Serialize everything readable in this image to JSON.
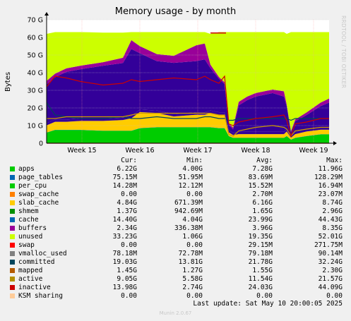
{
  "chart_data": {
    "type": "area",
    "title": "Memory usage - by month",
    "ylabel": "Bytes",
    "side_label": "RRDTOOL / TOBI OETIKER",
    "ylim": [
      0,
      70
    ],
    "yticks": [
      0,
      10,
      20,
      30,
      40,
      50,
      60,
      70
    ],
    "ytick_labels": [
      "0",
      "10 G",
      "20 G",
      "30 G",
      "40 G",
      "50 G",
      "60 G",
      "70 G"
    ],
    "xticks": [
      {
        "label": "Week 15",
        "pos": 0.125
      },
      {
        "label": "Week 16",
        "pos": 0.33
      },
      {
        "label": "Week 17",
        "pos": 0.535
      },
      {
        "label": "Week 18",
        "pos": 0.74
      },
      {
        "label": "Week 19",
        "pos": 0.945
      }
    ],
    "x": [
      0,
      0.03,
      0.07,
      0.12,
      0.2,
      0.27,
      0.3,
      0.33,
      0.39,
      0.45,
      0.53,
      0.56,
      0.58,
      0.61,
      0.63,
      0.645,
      0.66,
      0.68,
      0.71,
      0.74,
      0.8,
      0.84,
      0.85,
      0.865,
      0.88,
      0.92,
      0.97,
      1.0
    ],
    "series": [
      {
        "name": "apps",
        "color": "#00cc00",
        "values": [
          6,
          7.5,
          7.5,
          7.5,
          7,
          7,
          7,
          8.5,
          9,
          9,
          9,
          9,
          9,
          8.5,
          8.5,
          4,
          3,
          3,
          3,
          3,
          3,
          3,
          4,
          2,
          3,
          4,
          5,
          5
        ]
      },
      {
        "name": "page_tables",
        "color": "#0066b3",
        "values": [
          0.1,
          0.1,
          0.1,
          0.1,
          0.1,
          0.1,
          0.1,
          0.1,
          0.1,
          0.1,
          0.1,
          0.1,
          0.1,
          0.1,
          0.1,
          0.1,
          0.1,
          0.1,
          0.1,
          0.1,
          0.1,
          0.1,
          0.1,
          0.1,
          0.1,
          0.1,
          0.1,
          0.1
        ]
      },
      {
        "name": "per_cpu",
        "color": "#ff8000",
        "values": [
          0.05,
          0.05,
          0.05,
          0.05,
          0.05,
          0.05,
          0.05,
          0.05,
          0.05,
          0.05,
          0.05,
          0.05,
          0.05,
          0.05,
          0.05,
          0.05,
          0.05,
          0.05,
          0.05,
          0.05,
          0.05,
          0.05,
          0.05,
          0.05,
          0.05,
          0.05,
          0.05,
          0.05
        ]
      },
      {
        "name": "slab_cache",
        "color": "#ffcc00",
        "values": [
          4,
          4.5,
          4.5,
          5,
          5.5,
          6,
          7,
          9,
          8,
          6,
          7,
          7,
          8,
          7.5,
          7.5,
          2,
          1.5,
          2,
          2,
          2,
          2,
          2,
          2.5,
          1,
          2,
          2.5,
          2.5,
          2.5
        ]
      },
      {
        "name": "shmem",
        "color": "#330099",
        "values": [
          1.2,
          1.3,
          1.3,
          1.3,
          1.3,
          1.3,
          1.3,
          1.4,
          1.4,
          1.4,
          1.4,
          1.4,
          1.4,
          1.4,
          1.4,
          1.2,
          1.2,
          1.3,
          1.3,
          1.3,
          1.3,
          1.3,
          1.3,
          1.2,
          1.3,
          1.3,
          1.4,
          1.4
        ]
      },
      {
        "name": "cache",
        "color": "#330099",
        "values": [
          22,
          24,
          27,
          28,
          30,
          31,
          38,
          32,
          28,
          29,
          29,
          30,
          24,
          19,
          16,
          3,
          2,
          15,
          18,
          20,
          22,
          20,
          13,
          2,
          6,
          8,
          12,
          14
        ]
      },
      {
        "name": "buffers",
        "color": "#990099",
        "values": [
          2,
          2,
          2,
          2,
          2,
          3,
          5,
          4,
          4,
          4,
          9,
          9,
          2,
          1,
          1,
          1,
          1,
          2,
          2,
          2,
          2,
          3,
          1,
          0.5,
          1,
          1.5,
          2,
          2.3
        ]
      },
      {
        "name": "unused",
        "color": "#ccff00",
        "values": [
          26.65,
          23.55,
          20.55,
          19.05,
          16.75,
          14.25,
          4.55,
          7.95,
          12.45,
          13.45,
          7.45,
          6.45,
          17.45,
          25.45,
          28.45,
          51.65,
          54.15,
          39.55,
          36.55,
          34.55,
          32.55,
          33.55,
          40.05,
          56.15,
          49.55,
          45.55,
          39.95,
          37.65
        ]
      }
    ],
    "lines": [
      {
        "name": "committed",
        "color": "#00455c",
        "values": [
          23,
          16,
          15,
          14,
          14,
          15,
          14,
          14,
          15,
          14,
          14,
          15,
          15,
          14,
          14,
          13,
          13,
          14,
          14,
          14,
          14,
          14,
          14,
          13,
          14,
          14,
          14,
          14
        ]
      },
      {
        "name": "active",
        "color": "#cc9900",
        "values": [
          14,
          14,
          15,
          15,
          15,
          15,
          16,
          17,
          17,
          17,
          17,
          17,
          17,
          16,
          16,
          5,
          4,
          7,
          8,
          9,
          10,
          9,
          8,
          4,
          7,
          8,
          9,
          9
        ]
      },
      {
        "name": "inactive",
        "color": "#cc0000",
        "values": [
          32,
          38,
          37,
          35,
          33,
          34,
          36,
          35,
          36,
          37,
          36,
          38,
          36,
          34,
          38,
          11,
          10,
          12,
          13,
          14,
          15,
          16,
          13,
          4,
          11,
          12,
          14,
          14
        ]
      },
      {
        "name": "swap",
        "color": "#ff0000",
        "values": [
          0,
          0,
          0,
          0,
          0,
          0,
          0,
          0,
          0,
          0,
          0,
          0,
          0,
          0,
          0,
          0,
          0,
          0,
          0,
          0,
          0,
          0,
          0,
          0,
          0,
          0,
          0,
          0
        ]
      }
    ],
    "max_marker": {
      "x_from": 0.58,
      "x_to": 0.635,
      "y": 62.5,
      "color": "#cc0000"
    },
    "legend_placement": "below",
    "grid": true
  },
  "legend": {
    "headers": [
      "Cur:",
      "Min:",
      "Avg:",
      "Max:"
    ],
    "rows": [
      {
        "name": "apps",
        "color": "#00cc00",
        "cur": "6.22G",
        "min": "4.00G",
        "avg": "7.28G",
        "max": "11.96G"
      },
      {
        "name": "page_tables",
        "color": "#0066b3",
        "cur": "75.15M",
        "min": "51.95M",
        "avg": "83.69M",
        "max": "128.29M"
      },
      {
        "name": "per_cpu",
        "color": "#00cc00",
        "cur": "14.28M",
        "min": "12.12M",
        "avg": "15.52M",
        "max": "16.94M"
      },
      {
        "name": "swap_cache",
        "color": "#ff8000",
        "cur": "0.00",
        "min": "0.00",
        "avg": "2.70M",
        "max": "23.07M"
      },
      {
        "name": "slab_cache",
        "color": "#ffcc00",
        "cur": "4.84G",
        "min": "671.39M",
        "avg": "6.16G",
        "max": "8.74G"
      },
      {
        "name": "shmem",
        "color": "#008f00",
        "cur": "1.37G",
        "min": "942.69M",
        "avg": "1.65G",
        "max": "2.96G"
      },
      {
        "name": "cache",
        "color": "#0066b3",
        "cur": "14.40G",
        "min": "4.04G",
        "avg": "23.99G",
        "max": "44.43G"
      },
      {
        "name": "buffers",
        "color": "#990099",
        "cur": "2.34G",
        "min": "336.38M",
        "avg": "3.96G",
        "max": "8.35G"
      },
      {
        "name": "unused",
        "color": "#ccff00",
        "cur": "33.23G",
        "min": "1.06G",
        "avg": "19.35G",
        "max": "52.01G"
      },
      {
        "name": "swap",
        "color": "#ff0000",
        "cur": "0.00",
        "min": "0.00",
        "avg": "29.15M",
        "max": "271.75M"
      },
      {
        "name": "vmalloc_used",
        "color": "#808080",
        "cur": "78.18M",
        "min": "72.78M",
        "avg": "79.18M",
        "max": "90.14M"
      },
      {
        "name": "committed",
        "color": "#00455c",
        "cur": "19.03G",
        "min": "13.81G",
        "avg": "21.78G",
        "max": "32.24G"
      },
      {
        "name": "mapped",
        "color": "#b35a00",
        "cur": "1.45G",
        "min": "1.27G",
        "avg": "1.55G",
        "max": "2.30G"
      },
      {
        "name": "active",
        "color": "#b38f00",
        "cur": "9.05G",
        "min": "5.58G",
        "avg": "11.54G",
        "max": "21.57G"
      },
      {
        "name": "inactive",
        "color": "#cc0000",
        "cur": "13.98G",
        "min": "2.74G",
        "avg": "24.03G",
        "max": "44.09G"
      },
      {
        "name": "KSM sharing",
        "color": "#ffcc99",
        "cur": "0.00",
        "min": "0.00",
        "avg": "0.00",
        "max": "0.00"
      }
    ]
  },
  "footer": {
    "last_update": "Last update: Sat May 10 20:00:05 2025",
    "munin": "Munin 2.0.67"
  }
}
